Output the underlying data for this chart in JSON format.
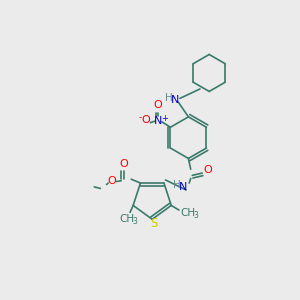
{
  "background_color": "#ebebeb",
  "bond_color": "#3a7a6a",
  "atom_colors": {
    "O": "#ff0000",
    "N": "#0000cc",
    "S": "#cccc00",
    "H": "#6a8a8a",
    "C": "#3a7a6a"
  },
  "font_size": 7.5,
  "lw": 1.2
}
